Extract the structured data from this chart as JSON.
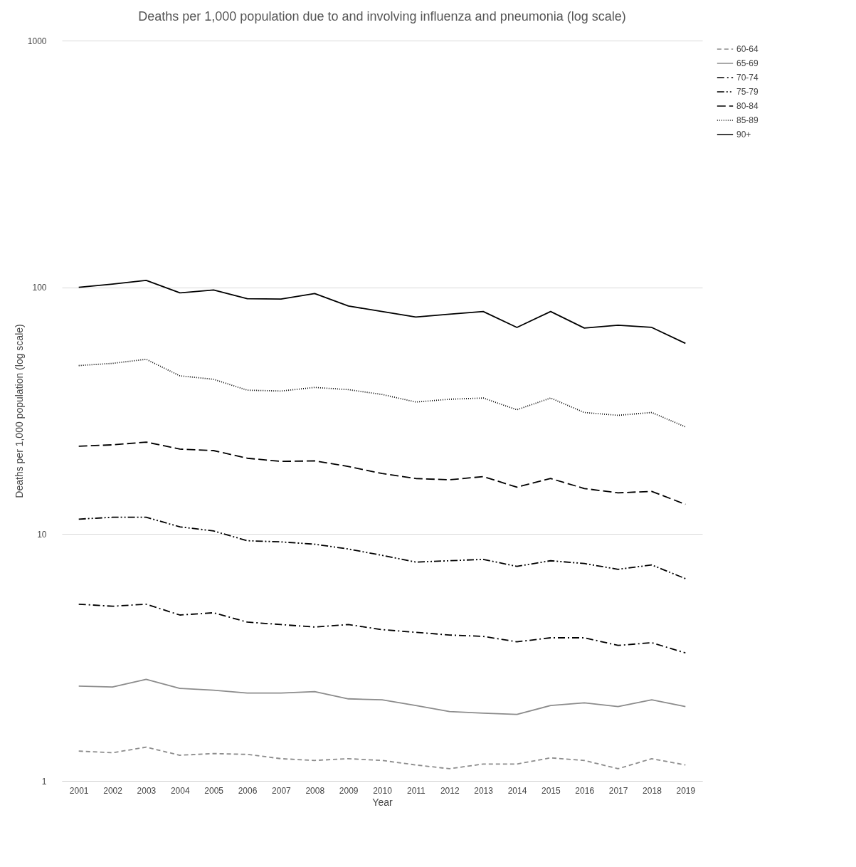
{
  "chart_data": {
    "type": "line",
    "title": "Deaths per 1,000 population due to and involving influenza and pneumonia (log scale)",
    "xlabel": "Year",
    "ylabel": "Deaths per 1,000 population (log scale)",
    "categories": [
      "2001",
      "2002",
      "2003",
      "2004",
      "2005",
      "2006",
      "2007",
      "2008",
      "2009",
      "2010",
      "2011",
      "2012",
      "2013",
      "2014",
      "2015",
      "2016",
      "2017",
      "2018",
      "2019"
    ],
    "log": "y",
    "ylim": [
      1,
      1000
    ],
    "yticks": [
      1,
      10,
      100,
      1000
    ],
    "grid": "y",
    "legend": "right",
    "marker": "none",
    "series": [
      {
        "name": "60-64",
        "color": "#8c8c8c",
        "line_style": "dashed",
        "values": [
          1.32,
          1.3,
          1.37,
          1.27,
          1.29,
          1.28,
          1.23,
          1.21,
          1.23,
          1.21,
          1.16,
          1.12,
          1.17,
          1.17,
          1.24,
          1.21,
          1.12,
          1.23,
          1.16
        ]
      },
      {
        "name": "65-69",
        "color": "#8c8c8c",
        "line_style": "solid",
        "values": [
          2.42,
          2.4,
          2.58,
          2.37,
          2.33,
          2.27,
          2.27,
          2.3,
          2.15,
          2.13,
          2.02,
          1.91,
          1.88,
          1.86,
          2.02,
          2.07,
          2.0,
          2.13,
          2.0
        ]
      },
      {
        "name": "70-74",
        "color": "#000000",
        "line_style": "dashdot",
        "values": [
          5.2,
          5.1,
          5.2,
          4.7,
          4.8,
          4.4,
          4.3,
          4.2,
          4.3,
          4.1,
          4.0,
          3.9,
          3.85,
          3.66,
          3.8,
          3.8,
          3.54,
          3.63,
          3.3
        ]
      },
      {
        "name": "75-79",
        "color": "#000000",
        "line_style": "dashdotdot",
        "values": [
          11.5,
          11.7,
          11.7,
          10.7,
          10.3,
          9.4,
          9.3,
          9.1,
          8.7,
          8.2,
          7.7,
          7.8,
          7.9,
          7.4,
          7.8,
          7.6,
          7.2,
          7.5,
          6.6
        ]
      },
      {
        "name": "80-84",
        "color": "#000000",
        "line_style": "longdash",
        "values": [
          22.7,
          23,
          23.6,
          22.1,
          21.8,
          20.3,
          19.7,
          19.8,
          18.8,
          17.6,
          16.8,
          16.6,
          17.1,
          15.5,
          16.8,
          15.3,
          14.7,
          14.9,
          13.2
        ]
      },
      {
        "name": "85-89",
        "color": "#000000",
        "line_style": "dotted",
        "values": [
          48.2,
          49.2,
          51.1,
          43.8,
          42.4,
          38.3,
          38,
          39.3,
          38.5,
          36.8,
          34.3,
          35.2,
          35.6,
          31.9,
          35.6,
          31.1,
          30.3,
          31.1,
          27.2
        ]
      },
      {
        "name": "90+",
        "color": "#000000",
        "line_style": "solid",
        "values": [
          100,
          103,
          106.7,
          95,
          97.5,
          90,
          89.6,
          94.4,
          84,
          79.8,
          75.8,
          77.8,
          79.8,
          68.8,
          79.8,
          68.4,
          70.2,
          68.8,
          59.3
        ]
      }
    ]
  }
}
